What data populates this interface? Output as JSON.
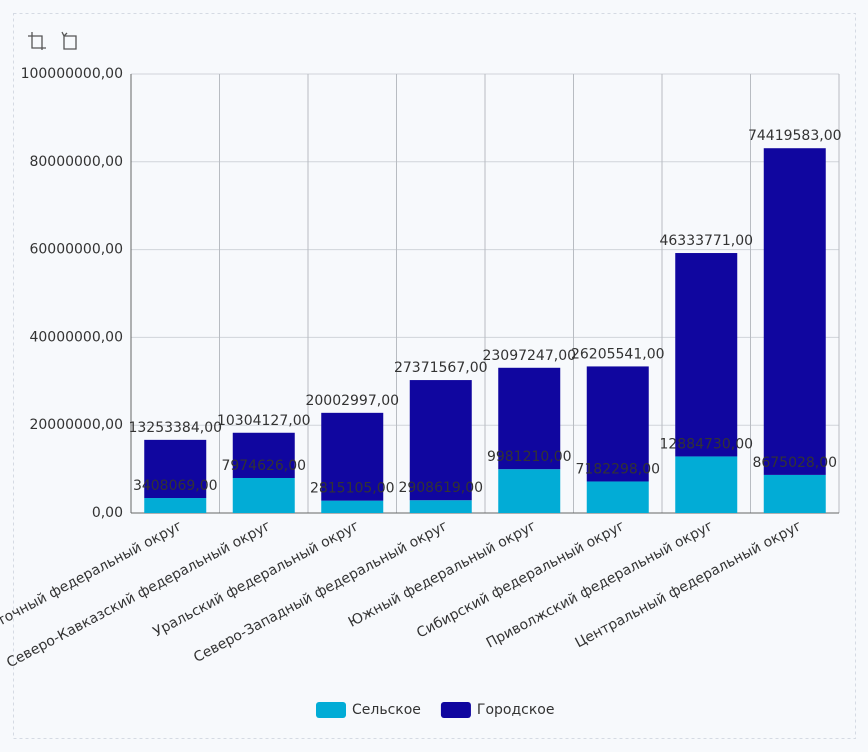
{
  "chart_data": {
    "type": "stacked_bar",
    "categories": [
      "Дальневосточный федеральный округ",
      "Северо-Кавказский федеральный округ",
      "Уральский федеральный округ",
      "Северо-Западный федеральный округ",
      "Южный федеральный округ",
      "Сибирский федеральный округ",
      "Приволжский федеральный округ",
      "Центральный федеральный округ"
    ],
    "series": [
      {
        "name": "Сельское",
        "color": "#02acd6",
        "values": [
          3408069,
          7974626,
          2815105,
          2908619,
          9981210,
          7182298,
          12884730,
          8675028
        ],
        "value_labels": [
          "3408069,00",
          "7974626,00",
          "2815105,00",
          "2908619,00",
          "9981210,00",
          "7182298,00",
          "12884730,00",
          "8675028,00"
        ]
      },
      {
        "name": "Городское",
        "color": "#10069f",
        "values": [
          13253384,
          10304127,
          20002997,
          27371567,
          23097247,
          26205541,
          46333771,
          74419583
        ],
        "value_labels": [
          "13253384,00",
          "10304127,00",
          "20002997,00",
          "27371567,00",
          "23097247,00",
          "26205541,00",
          "46333771,00",
          "74419583,00"
        ]
      }
    ],
    "ylim": [
      0,
      100000000
    ],
    "yticks": [
      {
        "value": 0,
        "label": "0,00"
      },
      {
        "value": 20000000,
        "label": "20000000,00"
      },
      {
        "value": 40000000,
        "label": "40000000,00"
      },
      {
        "value": 60000000,
        "label": "60000000,00"
      },
      {
        "value": 80000000,
        "label": "80000000,00"
      },
      {
        "value": 100000000,
        "label": "100000000,00"
      }
    ],
    "grid": true,
    "legend": "bottom"
  }
}
